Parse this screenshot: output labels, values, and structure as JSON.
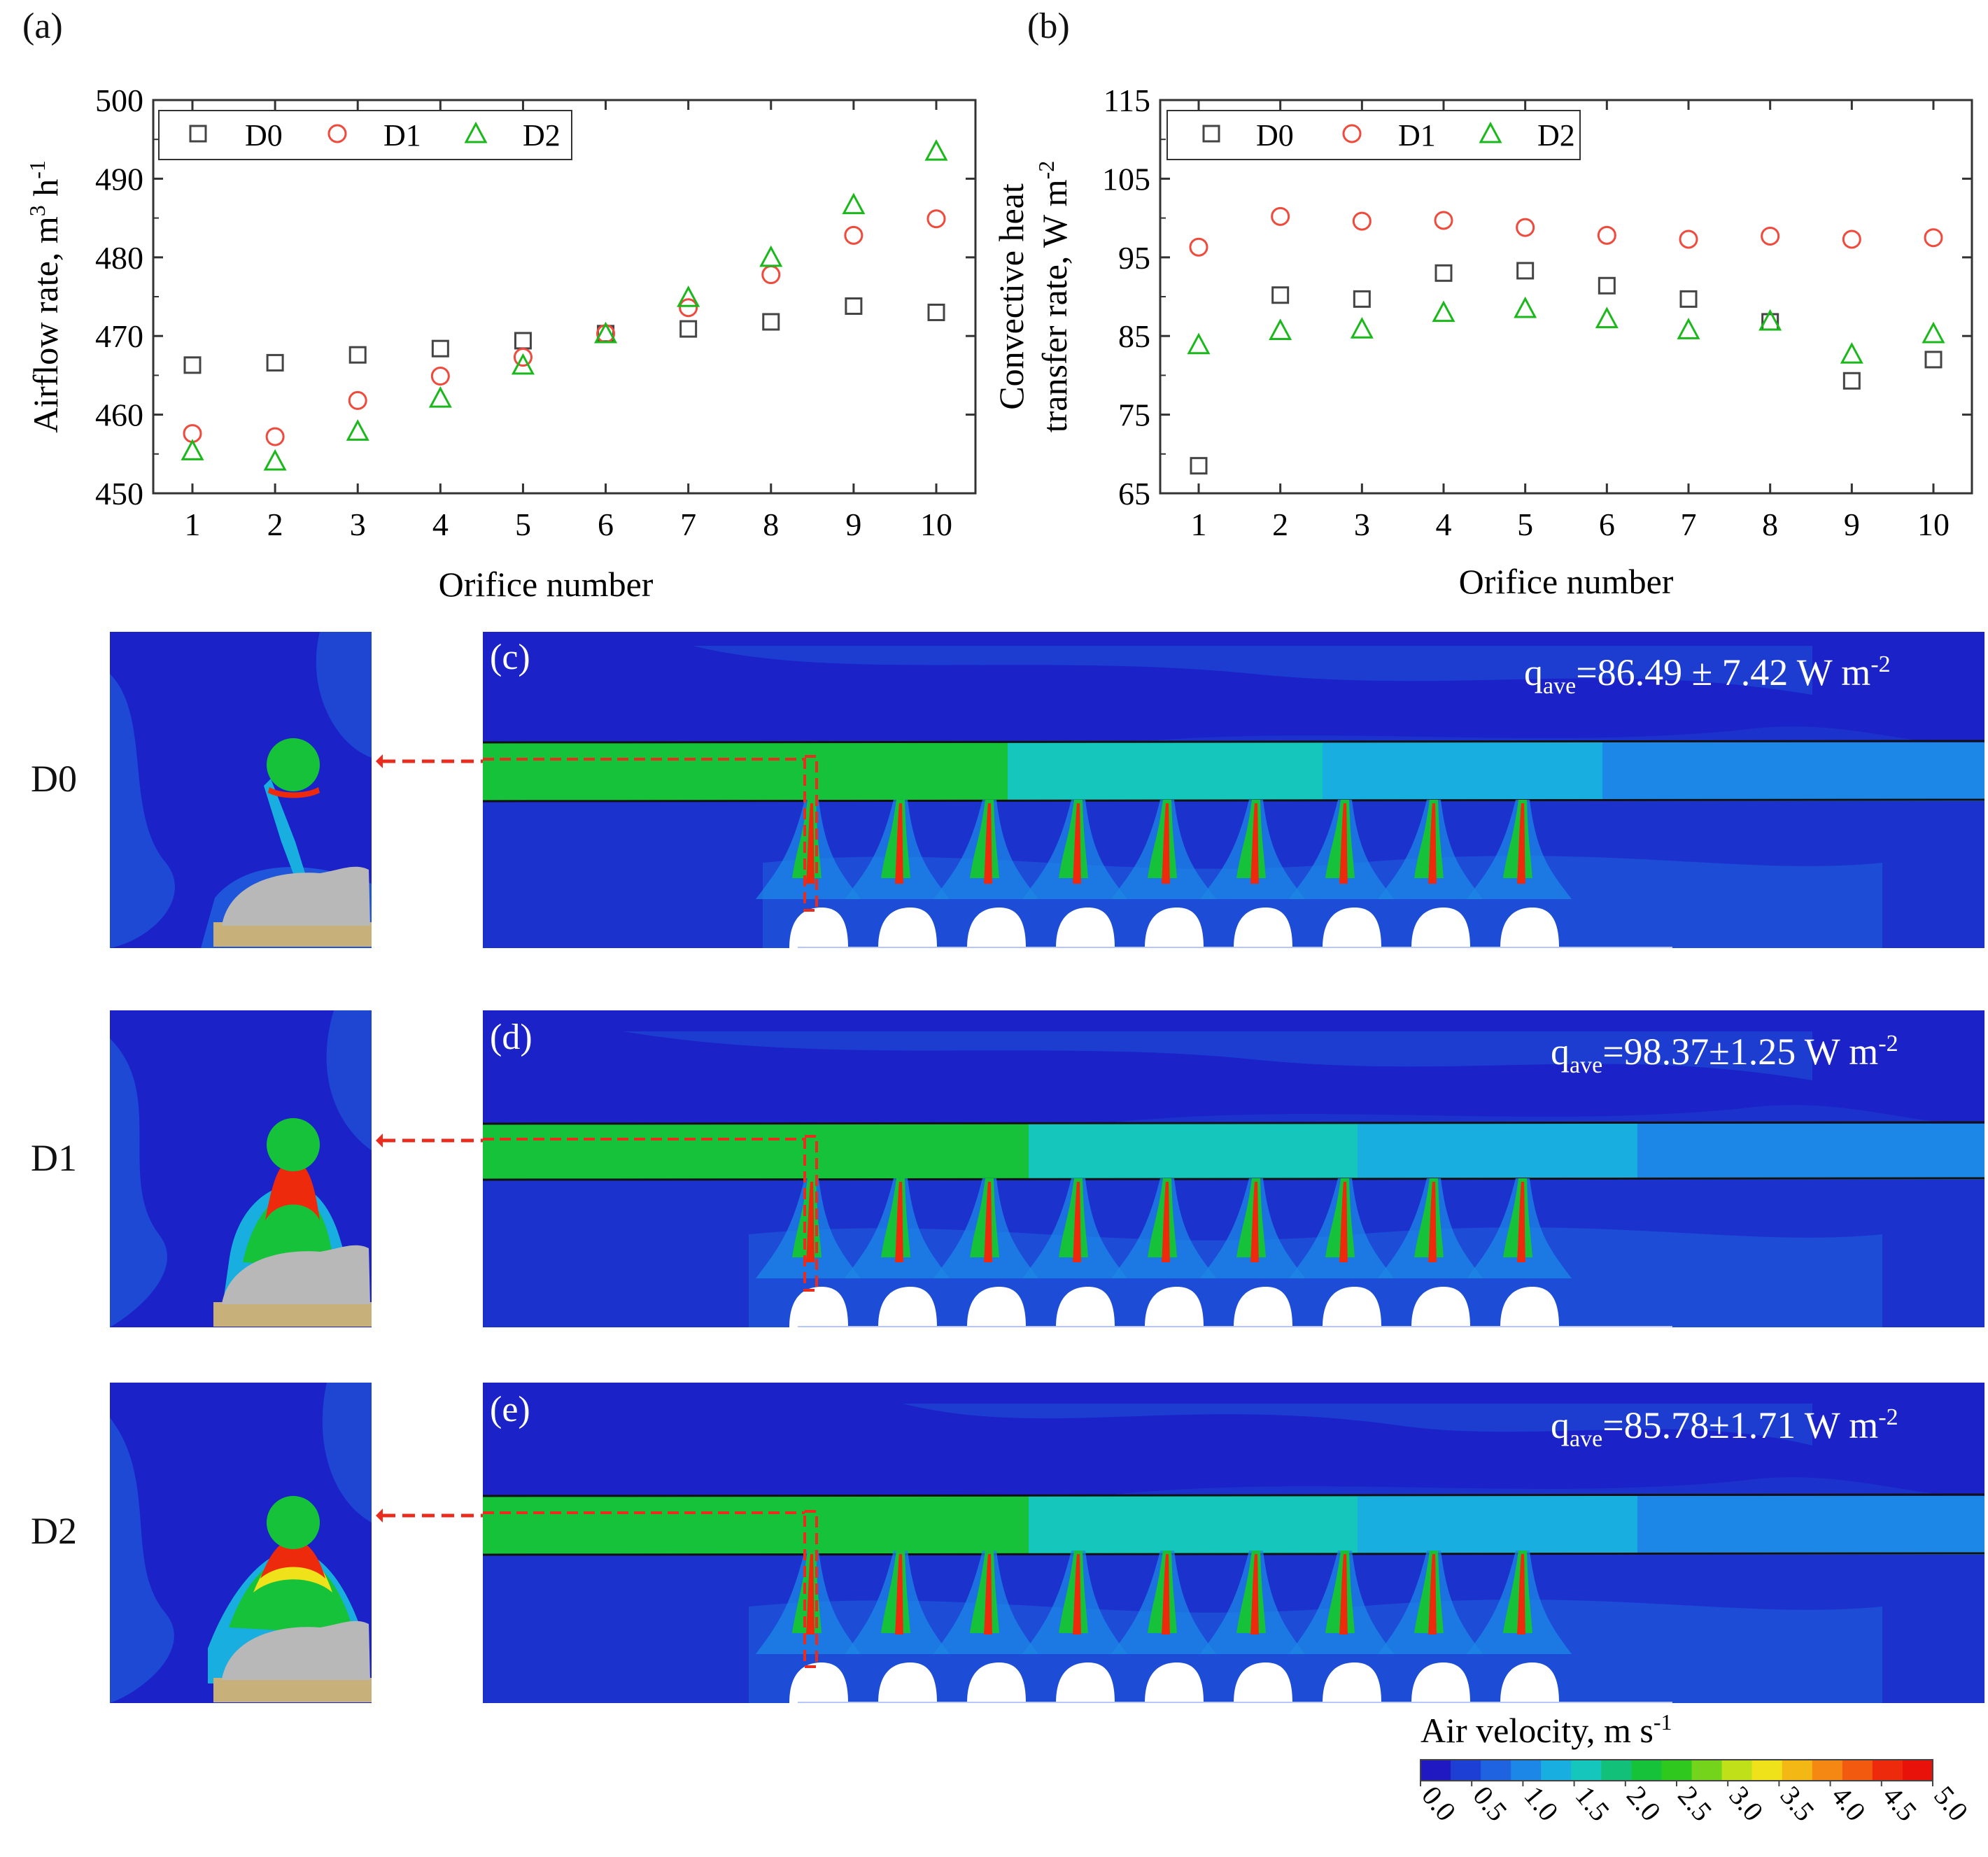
{
  "chart_data": [
    {
      "type": "scatter",
      "panel": "(a)",
      "xlabel": "Orifice number",
      "ylabel": "Airflow rate, m",
      "ylabel_unit_tail": " h",
      "ylabel_sup1": "3",
      "ylabel_sup2": "-1",
      "ylim": [
        450,
        500
      ],
      "yticks": [
        "450",
        "460",
        "470",
        "480",
        "490",
        "500"
      ],
      "x": [
        1,
        2,
        3,
        4,
        5,
        6,
        7,
        8,
        9,
        10
      ],
      "xticks": [
        "1",
        "2",
        "3",
        "4",
        "5",
        "6",
        "7",
        "8",
        "9",
        "10"
      ],
      "legend": [
        "D0",
        "D1",
        "D2"
      ],
      "series": [
        {
          "name": "D0",
          "marker": "square",
          "color": "#444444",
          "values": [
            466.3,
            466.6,
            467.6,
            468.4,
            469.4,
            470.3,
            470.9,
            471.8,
            473.8,
            473.0
          ]
        },
        {
          "name": "D1",
          "marker": "circle",
          "color": "#f04a3c",
          "values": [
            457.6,
            457.2,
            461.8,
            464.9,
            467.3,
            470.3,
            473.6,
            477.8,
            482.8,
            484.9
          ]
        },
        {
          "name": "D2",
          "marker": "triangle",
          "color": "#1bb81b",
          "values": [
            455.3,
            454.0,
            457.8,
            462.0,
            466.2,
            470.2,
            474.8,
            479.9,
            486.6,
            493.4
          ]
        }
      ]
    },
    {
      "type": "scatter",
      "panel": "(b)",
      "xlabel": "Orifice number",
      "ylabel_line1": "Convective heat",
      "ylabel_line2": "transfer rate, W m",
      "ylabel_sup": "-2",
      "ylim": [
        65,
        115
      ],
      "yticks": [
        "65",
        "75",
        "85",
        "95",
        "105",
        "115"
      ],
      "x": [
        1,
        2,
        3,
        4,
        5,
        6,
        7,
        8,
        9,
        10
      ],
      "xticks": [
        "1",
        "2",
        "3",
        "4",
        "5",
        "6",
        "7",
        "8",
        "9",
        "10"
      ],
      "legend": [
        "D0",
        "D1",
        "D2"
      ],
      "series": [
        {
          "name": "D0",
          "marker": "square",
          "color": "#444444",
          "values": [
            68.5,
            90.2,
            89.7,
            93.0,
            93.3,
            91.4,
            89.7,
            86.8,
            79.3,
            82.0
          ]
        },
        {
          "name": "D1",
          "marker": "circle",
          "color": "#f04a3c",
          "values": [
            96.3,
            100.2,
            99.6,
            99.7,
            98.8,
            97.8,
            97.3,
            97.7,
            97.3,
            97.5
          ]
        },
        {
          "name": "D2",
          "marker": "triangle",
          "color": "#1bb81b",
          "values": [
            83.8,
            85.6,
            85.8,
            87.9,
            88.4,
            87.1,
            85.7,
            86.8,
            82.6,
            85.2
          ]
        }
      ]
    }
  ],
  "simulations": [
    {
      "letter": "(c)",
      "row_label": "D0",
      "q_prefix": "q",
      "q_sub": "ave",
      "q_value": "=86.49 ± 7.42 W m",
      "q_sup": "-2"
    },
    {
      "letter": "(d)",
      "row_label": "D1",
      "q_prefix": "q",
      "q_sub": "ave",
      "q_value": "=98.37±1.25 W m",
      "q_sup": "-2"
    },
    {
      "letter": "(e)",
      "row_label": "D2",
      "q_prefix": "q",
      "q_sub": "ave",
      "q_value": "=85.78±1.71 W m",
      "q_sup": "-2"
    }
  ],
  "colorbar": {
    "title": "Air velocity, m s",
    "title_sup": "-1",
    "ticks": [
      "0.0",
      "0.5",
      "1.0",
      "1.5",
      "2.0",
      "2.5",
      "3.0",
      "3.5",
      "4.0",
      "4.5",
      "5.0"
    ],
    "colors": [
      "#2018c0",
      "#1e3fd4",
      "#1f63e0",
      "#1c87e6",
      "#19aee0",
      "#15c6bc",
      "#13c07a",
      "#16c23a",
      "#2fc81e",
      "#74d41c",
      "#c0e01a",
      "#f0e21a",
      "#f4b814",
      "#f58812",
      "#f25a10",
      "#ee2a0c",
      "#e8120a"
    ]
  },
  "colors": {
    "d0": "#444444",
    "d1": "#f04a3c",
    "d2": "#1bb81b",
    "arrow": "#e82c1e"
  }
}
